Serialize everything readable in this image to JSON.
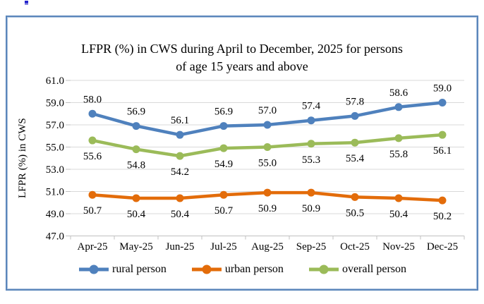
{
  "chart_data": {
    "type": "line",
    "title": "LFPR (%) in CWS during April to December, 2025 for persons of age 15 years and above",
    "title_lines": [
      "LFPR (%) in CWS during April to December, 2025 for persons",
      "of age 15 years and above"
    ],
    "ylabel": "LFPR (%) in CWS",
    "xlabel": "",
    "categories": [
      "Apr-25",
      "May-25",
      "Jun-25",
      "Jul-25",
      "Aug-25",
      "Sep-25",
      "Oct-25",
      "Nov-25",
      "Dec-25"
    ],
    "series": [
      {
        "name": "rural person",
        "color": "#4F81BD",
        "label_position": "above",
        "values": [
          58.0,
          56.9,
          56.1,
          56.9,
          57.0,
          57.4,
          57.8,
          58.6,
          59.0
        ]
      },
      {
        "name": "urban person",
        "color": "#E36C0A",
        "label_position": "below",
        "values": [
          50.7,
          50.4,
          50.4,
          50.7,
          50.9,
          50.9,
          50.5,
          50.4,
          50.2
        ]
      },
      {
        "name": "overall person",
        "color": "#9BBB59",
        "label_position": "below",
        "values": [
          55.6,
          54.8,
          54.2,
          54.9,
          55.0,
          55.3,
          55.4,
          55.8,
          56.1
        ]
      }
    ],
    "ylim": [
      47.0,
      61.0
    ],
    "y_step": 2.0,
    "y_tick_labels": [
      "47.0",
      "49.0",
      "51.0",
      "53.0",
      "55.0",
      "57.0",
      "59.0",
      "61.0"
    ],
    "grid": true,
    "data_labels": true,
    "legend_position": "bottom"
  },
  "styles": {
    "frame_border": "#5B86BB",
    "gridline": "#D9D9D9",
    "axis": "#C0C0C0",
    "text": "#000000"
  }
}
